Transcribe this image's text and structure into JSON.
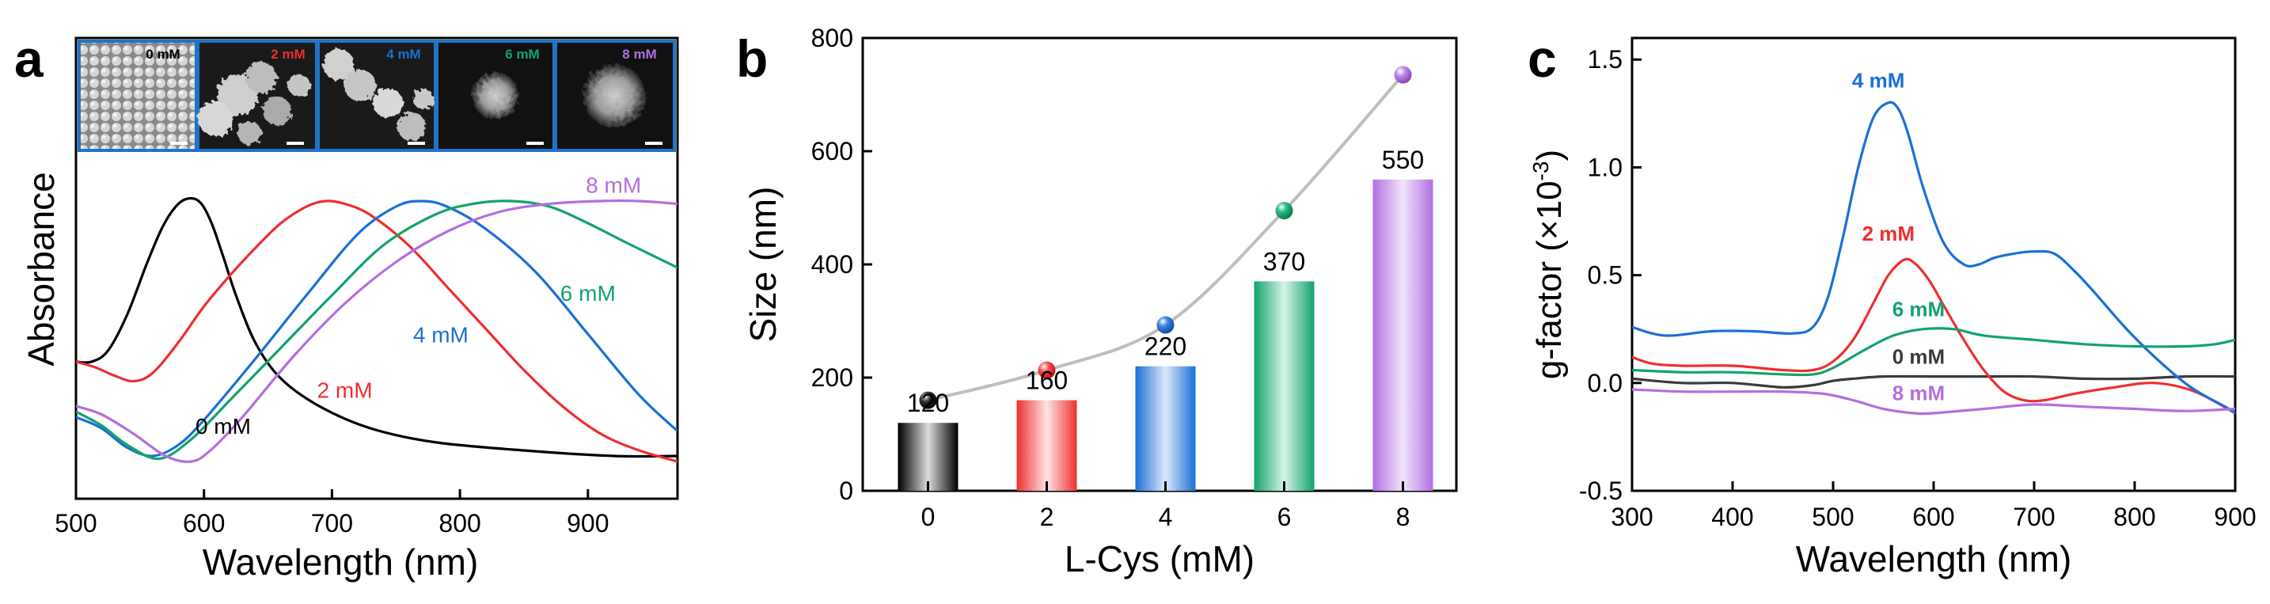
{
  "colors": {
    "black": "#000000",
    "red": "#ee2f2f",
    "blue": "#1b6fd6",
    "green": "#13a36b",
    "purple": "#b36ee0",
    "dark": "#3a3a3a",
    "connector": "#bdbdbd",
    "inset_border": "#1f74c8"
  },
  "chart_data": [
    {
      "panel": "a",
      "type": "line",
      "title": "",
      "xlabel": "Wavelength (nm)",
      "ylabel": "Absorbance",
      "xlim": [
        500,
        970
      ],
      "ylim": [
        0,
        1
      ],
      "xticks": [
        500,
        600,
        700,
        800,
        900
      ],
      "series": [
        {
          "name": "0 mM",
          "color_key": "black",
          "x": [
            500,
            512,
            525,
            540,
            555,
            568,
            580,
            590,
            598,
            606,
            615,
            625,
            640,
            660,
            690,
            730,
            780,
            850,
            920,
            970
          ],
          "y": [
            0.38,
            0.38,
            0.42,
            0.55,
            0.73,
            0.87,
            0.95,
            0.97,
            0.95,
            0.88,
            0.76,
            0.62,
            0.45,
            0.32,
            0.22,
            0.14,
            0.09,
            0.06,
            0.04,
            0.04
          ]
        },
        {
          "name": "2 mM",
          "color_key": "red",
          "x": [
            500,
            515,
            530,
            545,
            560,
            580,
            600,
            620,
            640,
            660,
            680,
            695,
            710,
            730,
            760,
            790,
            820,
            850,
            880,
            910,
            940,
            970
          ],
          "y": [
            0.38,
            0.36,
            0.33,
            0.31,
            0.34,
            0.45,
            0.58,
            0.69,
            0.79,
            0.88,
            0.94,
            0.96,
            0.95,
            0.91,
            0.8,
            0.65,
            0.5,
            0.35,
            0.22,
            0.12,
            0.06,
            0.02
          ]
        },
        {
          "name": "4 mM",
          "color_key": "blue",
          "x": [
            500,
            520,
            540,
            560,
            580,
            600,
            640,
            680,
            720,
            750,
            770,
            790,
            820,
            860,
            900,
            940,
            970
          ],
          "y": [
            0.18,
            0.14,
            0.07,
            0.04,
            0.08,
            0.17,
            0.39,
            0.62,
            0.84,
            0.94,
            0.96,
            0.94,
            0.86,
            0.7,
            0.48,
            0.26,
            0.13
          ]
        },
        {
          "name": "6 mM",
          "color_key": "green",
          "x": [
            500,
            520,
            540,
            565,
            590,
            620,
            660,
            700,
            740,
            780,
            810,
            840,
            870,
            900,
            930,
            970
          ],
          "y": [
            0.2,
            0.15,
            0.08,
            0.03,
            0.1,
            0.24,
            0.43,
            0.62,
            0.8,
            0.91,
            0.95,
            0.96,
            0.94,
            0.88,
            0.81,
            0.72
          ]
        },
        {
          "name": "8 mM",
          "color_key": "purple",
          "x": [
            500,
            520,
            545,
            570,
            590,
            605,
            630,
            670,
            710,
            750,
            790,
            830,
            870,
            910,
            940,
            970
          ],
          "y": [
            0.22,
            0.19,
            0.12,
            0.04,
            0.02,
            0.06,
            0.18,
            0.4,
            0.59,
            0.74,
            0.85,
            0.92,
            0.95,
            0.96,
            0.96,
            0.95
          ]
        }
      ],
      "curve_labels": [
        {
          "text": "0 mM",
          "color_key": "black",
          "x": 615,
          "y": 0.12
        },
        {
          "text": "2 mM",
          "color_key": "red",
          "x": 710,
          "y": 0.25
        },
        {
          "text": "4 mM",
          "color_key": "blue",
          "x": 785,
          "y": 0.45
        },
        {
          "text": "6 mM",
          "color_key": "green",
          "x": 900,
          "y": 0.6
        },
        {
          "text": "8 mM",
          "color_key": "purple",
          "x": 920,
          "y": 0.99
        }
      ],
      "inset_labels": [
        {
          "text": "0 mM",
          "color_key": "black"
        },
        {
          "text": "2 mM",
          "color_key": "red"
        },
        {
          "text": "4 mM",
          "color_key": "blue"
        },
        {
          "text": "6 mM",
          "color_key": "green"
        },
        {
          "text": "8 mM",
          "color_key": "purple"
        }
      ]
    },
    {
      "panel": "b",
      "type": "bar",
      "title": "",
      "xlabel": "L-Cys (mM)",
      "ylabel": "Size (nm)",
      "categories": [
        "0",
        "2",
        "4",
        "6",
        "8"
      ],
      "x": [
        0,
        2,
        4,
        6,
        8
      ],
      "ylim": [
        0,
        800
      ],
      "yticks": [
        0,
        200,
        400,
        600,
        800
      ],
      "bar_values": [
        120,
        160,
        220,
        370,
        550
      ],
      "bar_color_keys": [
        "black",
        "red",
        "blue",
        "green",
        "purple"
      ],
      "line_values": [
        160,
        213,
        293,
        495,
        735
      ],
      "bar_labels": [
        "120",
        "160",
        "220",
        "370",
        "550"
      ]
    },
    {
      "panel": "c",
      "type": "line",
      "title": "",
      "xlabel": "Wavelength (nm)",
      "ylabel": "g-factor (×10",
      "ylabel_sup": "-3",
      "ylabel_end": ")",
      "xlim": [
        300,
        900
      ],
      "ylim": [
        -0.5,
        1.6
      ],
      "xticks": [
        300,
        400,
        500,
        600,
        700,
        800,
        900
      ],
      "yticks": [
        -0.5,
        0.0,
        0.5,
        1.0,
        1.5
      ],
      "ytick_labels": [
        "-0.5",
        "0.0",
        "0.5",
        "1.0",
        "1.5"
      ],
      "series": [
        {
          "name": "0 mM",
          "color_key": "dark",
          "x": [
            300,
            350,
            400,
            450,
            480,
            500,
            520,
            550,
            600,
            650,
            700,
            750,
            800,
            850,
            900
          ],
          "y": [
            0.02,
            0.0,
            0.0,
            -0.02,
            -0.01,
            0.01,
            0.02,
            0.03,
            0.03,
            0.03,
            0.03,
            0.02,
            0.02,
            0.03,
            0.03
          ]
        },
        {
          "name": "2 mM",
          "color_key": "red",
          "x": [
            300,
            320,
            350,
            400,
            450,
            480,
            500,
            520,
            540,
            555,
            570,
            580,
            595,
            610,
            630,
            650,
            670,
            690,
            710,
            740,
            780,
            820,
            860,
            900
          ],
          "y": [
            0.12,
            0.09,
            0.08,
            0.08,
            0.06,
            0.06,
            0.1,
            0.2,
            0.37,
            0.5,
            0.57,
            0.56,
            0.48,
            0.36,
            0.2,
            0.06,
            -0.04,
            -0.08,
            -0.08,
            -0.05,
            -0.02,
            0.0,
            -0.04,
            -0.14
          ]
        },
        {
          "name": "4 mM",
          "color_key": "blue",
          "x": [
            300,
            320,
            340,
            380,
            420,
            460,
            480,
            495,
            510,
            525,
            540,
            555,
            565,
            575,
            590,
            610,
            630,
            645,
            660,
            680,
            700,
            720,
            740,
            760,
            790,
            820,
            850,
            870,
            890,
            900
          ],
          "y": [
            0.26,
            0.23,
            0.22,
            0.24,
            0.24,
            0.23,
            0.26,
            0.4,
            0.68,
            1.0,
            1.23,
            1.3,
            1.27,
            1.15,
            0.9,
            0.65,
            0.55,
            0.55,
            0.58,
            0.6,
            0.61,
            0.6,
            0.52,
            0.42,
            0.26,
            0.12,
            0.0,
            -0.06,
            -0.11,
            -0.14
          ]
        },
        {
          "name": "6 mM",
          "color_key": "green",
          "x": [
            300,
            350,
            400,
            450,
            480,
            500,
            530,
            560,
            590,
            620,
            650,
            700,
            750,
            800,
            850,
            880,
            900
          ],
          "y": [
            0.06,
            0.05,
            0.05,
            0.04,
            0.04,
            0.07,
            0.15,
            0.22,
            0.25,
            0.25,
            0.22,
            0.2,
            0.18,
            0.17,
            0.17,
            0.18,
            0.2
          ]
        },
        {
          "name": "8 mM",
          "color_key": "purple",
          "x": [
            300,
            350,
            400,
            450,
            490,
            520,
            550,
            580,
            600,
            650,
            700,
            750,
            800,
            850,
            900
          ],
          "y": [
            -0.03,
            -0.04,
            -0.04,
            -0.04,
            -0.05,
            -0.08,
            -0.12,
            -0.14,
            -0.14,
            -0.12,
            -0.1,
            -0.11,
            -0.12,
            -0.13,
            -0.12
          ]
        }
      ],
      "curve_labels": [
        {
          "text": "4 mM",
          "color_key": "blue",
          "x": 545,
          "y": 1.37
        },
        {
          "text": "2 mM",
          "color_key": "red",
          "x": 555,
          "y": 0.66
        },
        {
          "text": "6 mM",
          "color_key": "green",
          "x": 585,
          "y": 0.31
        },
        {
          "text": "0 mM",
          "color_key": "dark",
          "x": 585,
          "y": 0.09
        },
        {
          "text": "8 mM",
          "color_key": "purple",
          "x": 585,
          "y": -0.08
        }
      ]
    }
  ],
  "panel_letters": [
    "a",
    "b",
    "c"
  ]
}
